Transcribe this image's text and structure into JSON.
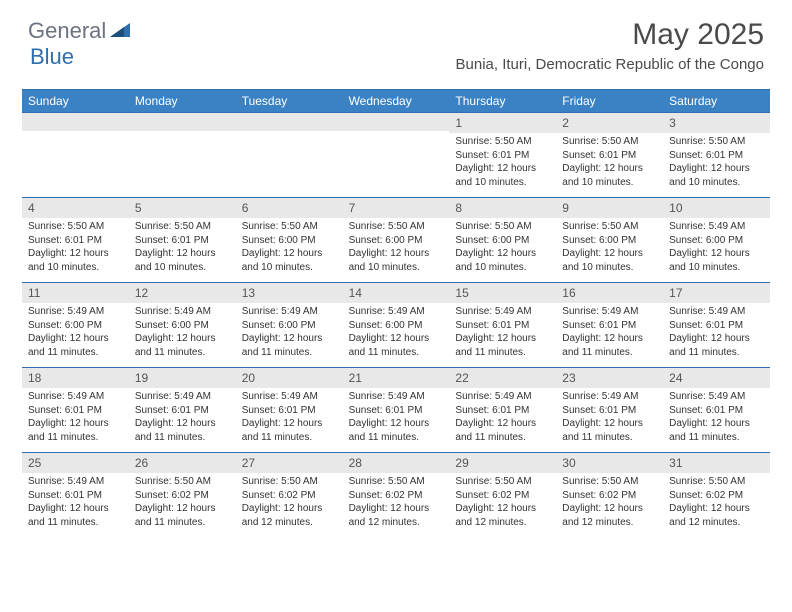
{
  "logo": {
    "textA": "General",
    "textB": "Blue"
  },
  "title": "May 2025",
  "location": "Bunia, Ituri, Democratic Republic of the Congo",
  "colors": {
    "header_bar": "#3b82c4",
    "border": "#2f6fad",
    "num_row_bg": "#e8e8e8",
    "text": "#333333",
    "logo_gray": "#6b7280",
    "logo_blue": "#2f6fad"
  },
  "weekdays": [
    "Sunday",
    "Monday",
    "Tuesday",
    "Wednesday",
    "Thursday",
    "Friday",
    "Saturday"
  ],
  "weeks": [
    [
      {
        "n": "",
        "sr": "",
        "ss": "",
        "dl": ""
      },
      {
        "n": "",
        "sr": "",
        "ss": "",
        "dl": ""
      },
      {
        "n": "",
        "sr": "",
        "ss": "",
        "dl": ""
      },
      {
        "n": "",
        "sr": "",
        "ss": "",
        "dl": ""
      },
      {
        "n": "1",
        "sr": "Sunrise: 5:50 AM",
        "ss": "Sunset: 6:01 PM",
        "dl": "Daylight: 12 hours and 10 minutes."
      },
      {
        "n": "2",
        "sr": "Sunrise: 5:50 AM",
        "ss": "Sunset: 6:01 PM",
        "dl": "Daylight: 12 hours and 10 minutes."
      },
      {
        "n": "3",
        "sr": "Sunrise: 5:50 AM",
        "ss": "Sunset: 6:01 PM",
        "dl": "Daylight: 12 hours and 10 minutes."
      }
    ],
    [
      {
        "n": "4",
        "sr": "Sunrise: 5:50 AM",
        "ss": "Sunset: 6:01 PM",
        "dl": "Daylight: 12 hours and 10 minutes."
      },
      {
        "n": "5",
        "sr": "Sunrise: 5:50 AM",
        "ss": "Sunset: 6:01 PM",
        "dl": "Daylight: 12 hours and 10 minutes."
      },
      {
        "n": "6",
        "sr": "Sunrise: 5:50 AM",
        "ss": "Sunset: 6:00 PM",
        "dl": "Daylight: 12 hours and 10 minutes."
      },
      {
        "n": "7",
        "sr": "Sunrise: 5:50 AM",
        "ss": "Sunset: 6:00 PM",
        "dl": "Daylight: 12 hours and 10 minutes."
      },
      {
        "n": "8",
        "sr": "Sunrise: 5:50 AM",
        "ss": "Sunset: 6:00 PM",
        "dl": "Daylight: 12 hours and 10 minutes."
      },
      {
        "n": "9",
        "sr": "Sunrise: 5:50 AM",
        "ss": "Sunset: 6:00 PM",
        "dl": "Daylight: 12 hours and 10 minutes."
      },
      {
        "n": "10",
        "sr": "Sunrise: 5:49 AM",
        "ss": "Sunset: 6:00 PM",
        "dl": "Daylight: 12 hours and 10 minutes."
      }
    ],
    [
      {
        "n": "11",
        "sr": "Sunrise: 5:49 AM",
        "ss": "Sunset: 6:00 PM",
        "dl": "Daylight: 12 hours and 11 minutes."
      },
      {
        "n": "12",
        "sr": "Sunrise: 5:49 AM",
        "ss": "Sunset: 6:00 PM",
        "dl": "Daylight: 12 hours and 11 minutes."
      },
      {
        "n": "13",
        "sr": "Sunrise: 5:49 AM",
        "ss": "Sunset: 6:00 PM",
        "dl": "Daylight: 12 hours and 11 minutes."
      },
      {
        "n": "14",
        "sr": "Sunrise: 5:49 AM",
        "ss": "Sunset: 6:00 PM",
        "dl": "Daylight: 12 hours and 11 minutes."
      },
      {
        "n": "15",
        "sr": "Sunrise: 5:49 AM",
        "ss": "Sunset: 6:01 PM",
        "dl": "Daylight: 12 hours and 11 minutes."
      },
      {
        "n": "16",
        "sr": "Sunrise: 5:49 AM",
        "ss": "Sunset: 6:01 PM",
        "dl": "Daylight: 12 hours and 11 minutes."
      },
      {
        "n": "17",
        "sr": "Sunrise: 5:49 AM",
        "ss": "Sunset: 6:01 PM",
        "dl": "Daylight: 12 hours and 11 minutes."
      }
    ],
    [
      {
        "n": "18",
        "sr": "Sunrise: 5:49 AM",
        "ss": "Sunset: 6:01 PM",
        "dl": "Daylight: 12 hours and 11 minutes."
      },
      {
        "n": "19",
        "sr": "Sunrise: 5:49 AM",
        "ss": "Sunset: 6:01 PM",
        "dl": "Daylight: 12 hours and 11 minutes."
      },
      {
        "n": "20",
        "sr": "Sunrise: 5:49 AM",
        "ss": "Sunset: 6:01 PM",
        "dl": "Daylight: 12 hours and 11 minutes."
      },
      {
        "n": "21",
        "sr": "Sunrise: 5:49 AM",
        "ss": "Sunset: 6:01 PM",
        "dl": "Daylight: 12 hours and 11 minutes."
      },
      {
        "n": "22",
        "sr": "Sunrise: 5:49 AM",
        "ss": "Sunset: 6:01 PM",
        "dl": "Daylight: 12 hours and 11 minutes."
      },
      {
        "n": "23",
        "sr": "Sunrise: 5:49 AM",
        "ss": "Sunset: 6:01 PM",
        "dl": "Daylight: 12 hours and 11 minutes."
      },
      {
        "n": "24",
        "sr": "Sunrise: 5:49 AM",
        "ss": "Sunset: 6:01 PM",
        "dl": "Daylight: 12 hours and 11 minutes."
      }
    ],
    [
      {
        "n": "25",
        "sr": "Sunrise: 5:49 AM",
        "ss": "Sunset: 6:01 PM",
        "dl": "Daylight: 12 hours and 11 minutes."
      },
      {
        "n": "26",
        "sr": "Sunrise: 5:50 AM",
        "ss": "Sunset: 6:02 PM",
        "dl": "Daylight: 12 hours and 11 minutes."
      },
      {
        "n": "27",
        "sr": "Sunrise: 5:50 AM",
        "ss": "Sunset: 6:02 PM",
        "dl": "Daylight: 12 hours and 12 minutes."
      },
      {
        "n": "28",
        "sr": "Sunrise: 5:50 AM",
        "ss": "Sunset: 6:02 PM",
        "dl": "Daylight: 12 hours and 12 minutes."
      },
      {
        "n": "29",
        "sr": "Sunrise: 5:50 AM",
        "ss": "Sunset: 6:02 PM",
        "dl": "Daylight: 12 hours and 12 minutes."
      },
      {
        "n": "30",
        "sr": "Sunrise: 5:50 AM",
        "ss": "Sunset: 6:02 PM",
        "dl": "Daylight: 12 hours and 12 minutes."
      },
      {
        "n": "31",
        "sr": "Sunrise: 5:50 AM",
        "ss": "Sunset: 6:02 PM",
        "dl": "Daylight: 12 hours and 12 minutes."
      }
    ]
  ]
}
